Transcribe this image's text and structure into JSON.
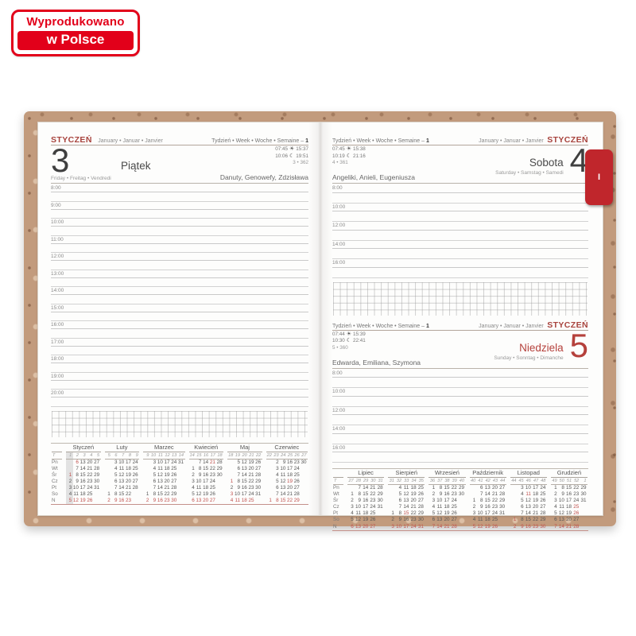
{
  "badge": {
    "line1": "Wyprodukowano",
    "line2": "w Polsce"
  },
  "colors": {
    "accent_red": "#a8433d",
    "badge_red": "#e2001a",
    "tab_red": "#c0262c",
    "sunday_red": "#b5413c",
    "cover_cork": "#c29b7d"
  },
  "left_page": {
    "month_label": "STYCZEŃ",
    "month_sub": "January • Januar • Janvier",
    "week_label": "Tydzień • Week • Woche • Semaine – ",
    "week_num": "1",
    "day_number": "3",
    "day_name": "Piątek",
    "day_sub": "Friday • Freitag • Vendredi",
    "sun": {
      "rise": "07:45",
      "set": "15:37"
    },
    "moon": {
      "rise": "10:06",
      "set": "19:51"
    },
    "day_count": "3 • 362",
    "namedays": "Danuty, Genowefy, Zdzisława",
    "hours": [
      "8:00",
      "9:00",
      "10:00",
      "11:00",
      "12:00",
      "13:00",
      "14:00",
      "15:00",
      "16:00",
      "17:00",
      "18:00",
      "19:00",
      "20:00"
    ]
  },
  "right_page": {
    "tab_label": "I",
    "sections": [
      {
        "week_label": "Tydzień • Week • Woche • Semaine – ",
        "week_num": "1",
        "month_sub": "January • Januar • Janvier",
        "month_label": "STYCZEŃ",
        "day_number": "4",
        "day_name": "Sobota",
        "day_sub": "Saturday • Samstag • Samedi",
        "sun": {
          "rise": "07:45",
          "set": "15:38"
        },
        "moon": {
          "rise": "10:19",
          "set": "21:16"
        },
        "day_count": "4 • 361",
        "namedays": "Angeliki, Anieli, Eugeniusza",
        "hours": [
          "8:00",
          "10:00",
          "12:00",
          "14:00",
          "16:00"
        ]
      },
      {
        "week_label": "Tydzień • Week • Woche • Semaine – ",
        "week_num": "1",
        "month_sub": "January • Januar • Janvier",
        "month_label": "STYCZEŃ",
        "day_number": "5",
        "day_name": "Niedziela",
        "day_sub": "Sunday • Sonntag • Dimanche",
        "sun": {
          "rise": "07:44",
          "set": "15:39"
        },
        "moon": {
          "rise": "10:30",
          "set": "22:41"
        },
        "day_count": "5 • 360",
        "namedays": "Edwarda, Emiliana, Szymona",
        "hours": [
          "8:00",
          "10:00",
          "12:00",
          "14:00",
          "16:00"
        ]
      }
    ]
  },
  "mini_calendars": {
    "corner": "T",
    "day_labels": [
      "Pn",
      "Wt",
      "Śr",
      "Cz",
      "Pt",
      "So",
      "N"
    ],
    "left_months": [
      {
        "name": "Styczeń",
        "weeks": [
          "1",
          "2",
          "3",
          "4",
          "5"
        ],
        "hl": 0,
        "red": [
          "1",
          "6"
        ],
        "rows": [
          [
            "",
            "6",
            "13",
            "20",
            "27"
          ],
          [
            "",
            "7",
            "14",
            "21",
            "28"
          ],
          [
            "1",
            "8",
            "15",
            "22",
            "29"
          ],
          [
            "2",
            "9",
            "16",
            "23",
            "30"
          ],
          [
            "3",
            "10",
            "17",
            "24",
            "31"
          ],
          [
            "4",
            "11",
            "18",
            "25",
            ""
          ],
          [
            "5",
            "12",
            "19",
            "26",
            ""
          ]
        ]
      },
      {
        "name": "Luty",
        "weeks": [
          "5",
          "6",
          "7",
          "8",
          "9"
        ],
        "red": [],
        "rows": [
          [
            "",
            "3",
            "10",
            "17",
            "24"
          ],
          [
            "",
            "4",
            "11",
            "18",
            "25"
          ],
          [
            "",
            "5",
            "12",
            "19",
            "26"
          ],
          [
            "",
            "6",
            "13",
            "20",
            "27"
          ],
          [
            "",
            "7",
            "14",
            "21",
            "28"
          ],
          [
            "1",
            "8",
            "15",
            "22",
            ""
          ],
          [
            "2",
            "9",
            "16",
            "23",
            ""
          ]
        ]
      },
      {
        "name": "Marzec",
        "weeks": [
          "9",
          "10",
          "11",
          "12",
          "13",
          "14"
        ],
        "red": [],
        "rows": [
          [
            "",
            "3",
            "10",
            "17",
            "24",
            "31"
          ],
          [
            "",
            "4",
            "11",
            "18",
            "25",
            ""
          ],
          [
            "",
            "5",
            "12",
            "19",
            "26",
            ""
          ],
          [
            "",
            "6",
            "13",
            "20",
            "27",
            ""
          ],
          [
            "",
            "7",
            "14",
            "21",
            "28",
            ""
          ],
          [
            "1",
            "8",
            "15",
            "22",
            "29",
            ""
          ],
          [
            "2",
            "9",
            "16",
            "23",
            "30",
            ""
          ]
        ]
      },
      {
        "name": "Kwiecień",
        "weeks": [
          "14",
          "15",
          "16",
          "17",
          "18"
        ],
        "red": [
          "21"
        ],
        "rows": [
          [
            "",
            "7",
            "14",
            "21",
            "28"
          ],
          [
            "1",
            "8",
            "15",
            "22",
            "29"
          ],
          [
            "2",
            "9",
            "16",
            "23",
            "30"
          ],
          [
            "3",
            "10",
            "17",
            "24",
            ""
          ],
          [
            "4",
            "11",
            "18",
            "25",
            ""
          ],
          [
            "5",
            "12",
            "19",
            "26",
            ""
          ],
          [
            "6",
            "13",
            "20",
            "27",
            ""
          ]
        ]
      },
      {
        "name": "Maj",
        "weeks": [
          "18",
          "19",
          "20",
          "21",
          "22"
        ],
        "red": [
          "1",
          "3"
        ],
        "rows": [
          [
            "",
            "5",
            "12",
            "19",
            "26"
          ],
          [
            "",
            "6",
            "13",
            "20",
            "27"
          ],
          [
            "",
            "7",
            "14",
            "21",
            "28"
          ],
          [
            "1",
            "8",
            "15",
            "22",
            "29"
          ],
          [
            "2",
            "9",
            "16",
            "23",
            "30"
          ],
          [
            "3",
            "10",
            "17",
            "24",
            "31"
          ],
          [
            "4",
            "11",
            "18",
            "25",
            ""
          ]
        ]
      },
      {
        "name": "Czerwiec",
        "weeks": [
          "22",
          "23",
          "24",
          "25",
          "26",
          "27"
        ],
        "red": [
          "19"
        ],
        "rows": [
          [
            "",
            "2",
            "9",
            "16",
            "23",
            "30"
          ],
          [
            "",
            "3",
            "10",
            "17",
            "24",
            ""
          ],
          [
            "",
            "4",
            "11",
            "18",
            "25",
            ""
          ],
          [
            "",
            "5",
            "12",
            "19",
            "26",
            ""
          ],
          [
            "",
            "6",
            "13",
            "20",
            "27",
            ""
          ],
          [
            "",
            "7",
            "14",
            "21",
            "28",
            ""
          ],
          [
            "1",
            "8",
            "15",
            "22",
            "29",
            ""
          ]
        ]
      }
    ],
    "right_months": [
      {
        "name": "Lipiec",
        "weeks": [
          "27",
          "28",
          "29",
          "30",
          "31"
        ],
        "red": [],
        "rows": [
          [
            "",
            "7",
            "14",
            "21",
            "28"
          ],
          [
            "1",
            "8",
            "15",
            "22",
            "29"
          ],
          [
            "2",
            "9",
            "16",
            "23",
            "30"
          ],
          [
            "3",
            "10",
            "17",
            "24",
            "31"
          ],
          [
            "4",
            "11",
            "18",
            "25",
            ""
          ],
          [
            "5",
            "12",
            "19",
            "26",
            ""
          ],
          [
            "6",
            "13",
            "20",
            "27",
            ""
          ]
        ]
      },
      {
        "name": "Sierpień",
        "weeks": [
          "31",
          "32",
          "33",
          "34",
          "35"
        ],
        "red": [
          "15"
        ],
        "rows": [
          [
            "",
            "4",
            "11",
            "18",
            "25"
          ],
          [
            "",
            "5",
            "12",
            "19",
            "26"
          ],
          [
            "",
            "6",
            "13",
            "20",
            "27"
          ],
          [
            "",
            "7",
            "14",
            "21",
            "28"
          ],
          [
            "1",
            "8",
            "15",
            "22",
            "29"
          ],
          [
            "2",
            "9",
            "16",
            "23",
            "30"
          ],
          [
            "3",
            "10",
            "17",
            "24",
            "31"
          ]
        ]
      },
      {
        "name": "Wrzesień",
        "weeks": [
          "36",
          "37",
          "38",
          "39",
          "40"
        ],
        "red": [],
        "rows": [
          [
            "1",
            "8",
            "15",
            "22",
            "29"
          ],
          [
            "2",
            "9",
            "16",
            "23",
            "30"
          ],
          [
            "3",
            "10",
            "17",
            "24",
            ""
          ],
          [
            "4",
            "11",
            "18",
            "25",
            ""
          ],
          [
            "5",
            "12",
            "19",
            "26",
            ""
          ],
          [
            "6",
            "13",
            "20",
            "27",
            ""
          ],
          [
            "7",
            "14",
            "21",
            "28",
            ""
          ]
        ]
      },
      {
        "name": "Październik",
        "weeks": [
          "40",
          "41",
          "42",
          "43",
          "44"
        ],
        "red": [],
        "rows": [
          [
            "",
            "6",
            "13",
            "20",
            "27"
          ],
          [
            "",
            "7",
            "14",
            "21",
            "28"
          ],
          [
            "1",
            "8",
            "15",
            "22",
            "29"
          ],
          [
            "2",
            "9",
            "16",
            "23",
            "30"
          ],
          [
            "3",
            "10",
            "17",
            "24",
            "31"
          ],
          [
            "4",
            "11",
            "18",
            "25",
            ""
          ],
          [
            "5",
            "12",
            "19",
            "26",
            ""
          ]
        ]
      },
      {
        "name": "Listopad",
        "weeks": [
          "44",
          "45",
          "46",
          "47",
          "48"
        ],
        "red": [
          "1",
          "11"
        ],
        "rows": [
          [
            "",
            "3",
            "10",
            "17",
            "24"
          ],
          [
            "",
            "4",
            "11",
            "18",
            "25"
          ],
          [
            "",
            "5",
            "12",
            "19",
            "26"
          ],
          [
            "",
            "6",
            "13",
            "20",
            "27"
          ],
          [
            "",
            "7",
            "14",
            "21",
            "28"
          ],
          [
            "1",
            "8",
            "15",
            "22",
            "29"
          ],
          [
            "2",
            "9",
            "16",
            "23",
            "30"
          ]
        ]
      },
      {
        "name": "Grudzień",
        "weeks": [
          "49",
          "50",
          "51",
          "52",
          "1"
        ],
        "red": [
          "25",
          "26"
        ],
        "rows": [
          [
            "1",
            "8",
            "15",
            "22",
            "29"
          ],
          [
            "2",
            "9",
            "16",
            "23",
            "30"
          ],
          [
            "3",
            "10",
            "17",
            "24",
            "31"
          ],
          [
            "4",
            "11",
            "18",
            "25",
            ""
          ],
          [
            "5",
            "12",
            "19",
            "26",
            ""
          ],
          [
            "6",
            "13",
            "20",
            "27",
            ""
          ],
          [
            "7",
            "14",
            "21",
            "28",
            ""
          ]
        ]
      }
    ]
  }
}
